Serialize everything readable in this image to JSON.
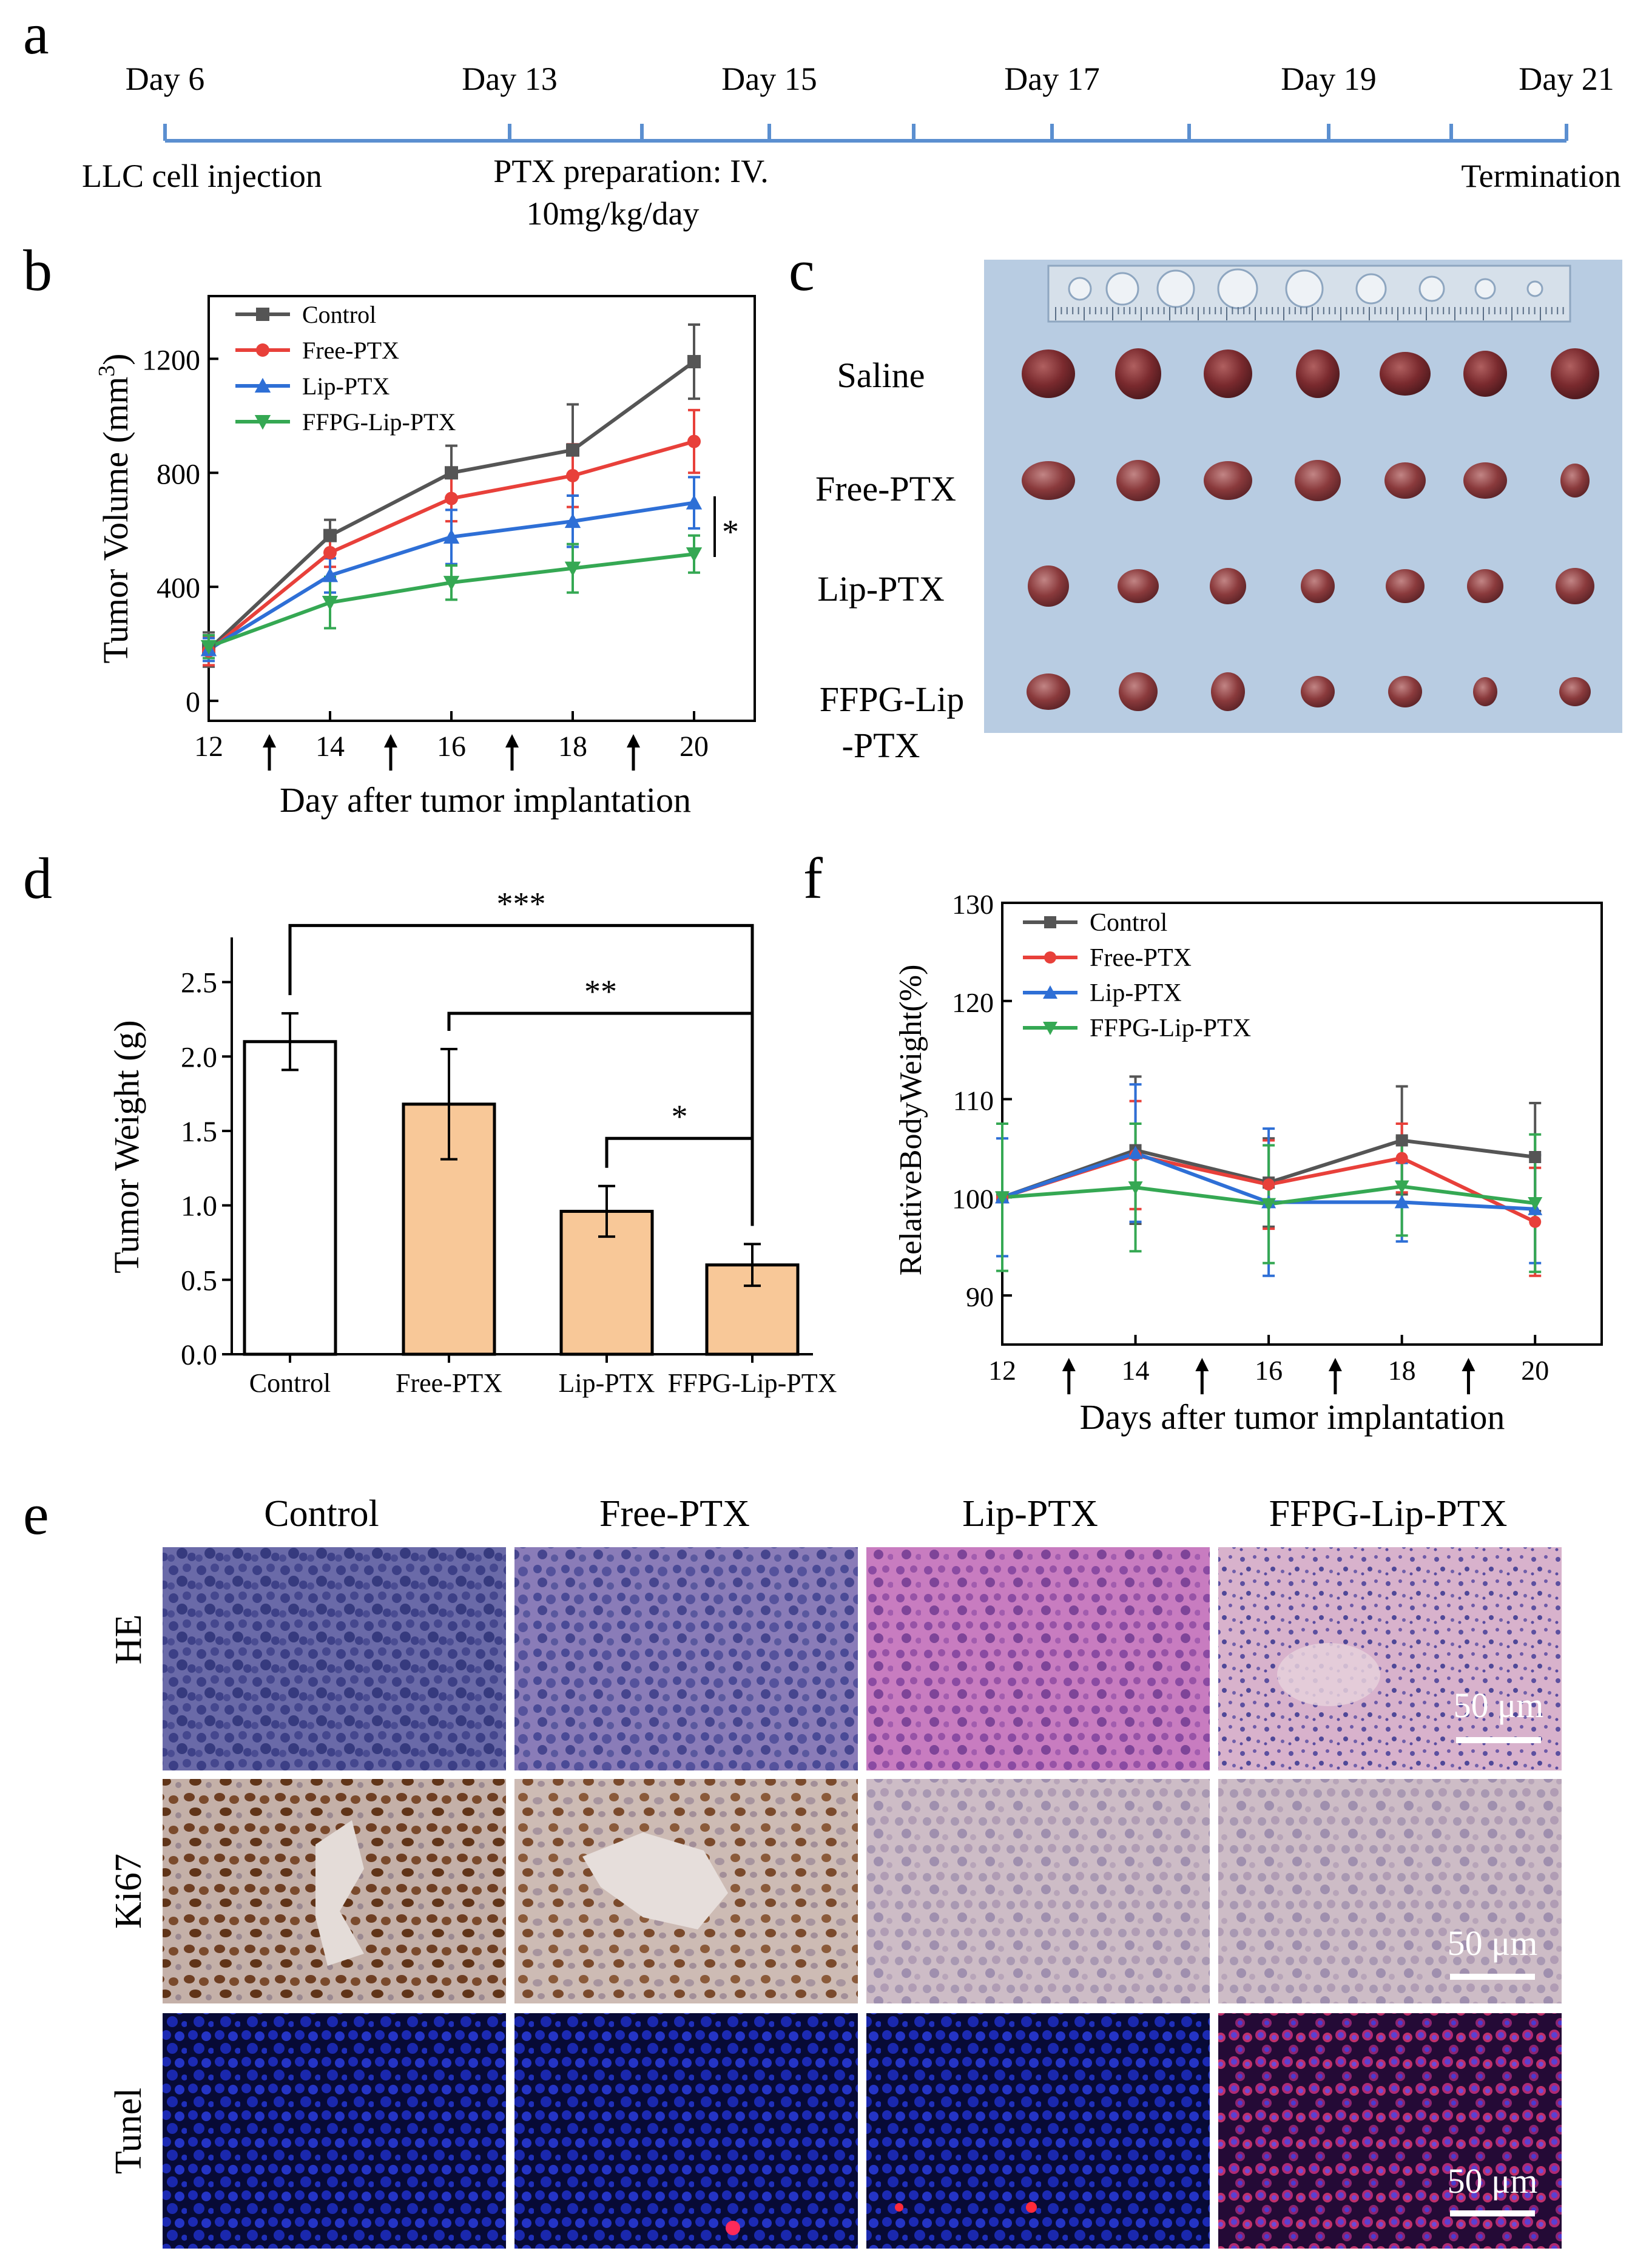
{
  "panel_labels": {
    "a": "a",
    "b": "b",
    "c": "c",
    "d": "d",
    "e": "e",
    "f": "f"
  },
  "timeline": {
    "days": [
      "Day 6",
      "Day 13",
      "Day 15",
      "Day 17",
      "Day 19",
      "Day 21"
    ],
    "below_labels": {
      "injection": "LLC  cell injection",
      "prep_line1": "PTX preparation:  IV.",
      "prep_line2": "10mg/kg/day",
      "termination": "Termination"
    },
    "line_color": "#5b8fd0"
  },
  "photo_c": {
    "row_labels": [
      "Saline",
      "Free-PTX",
      "Lip-PTX",
      "FFPG-Lip",
      "-PTX"
    ]
  },
  "histology": {
    "columns": [
      "Control",
      "Free-PTX",
      "Lip-PTX",
      "FFPG-Lip-PTX"
    ],
    "rows": [
      "HE",
      "Ki67",
      "Tunel"
    ],
    "scale_bar": "50 μm"
  },
  "chart_data": [
    {
      "id": "b",
      "type": "line",
      "title": "",
      "xlabel": "Day after tumor implantation",
      "ylabel_main": "Tumor Volume (mm",
      "ylabel_sup": "3",
      "ylabel_close": ")",
      "x": [
        12,
        14,
        16,
        18,
        20
      ],
      "xticks": [
        "12",
        "14",
        "16",
        "18",
        "20"
      ],
      "xlim": [
        12,
        21
      ],
      "ylim": [
        -70,
        1420
      ],
      "yticks": [
        0,
        400,
        800,
        1200
      ],
      "ytick_labels": [
        "0",
        "400",
        "800",
        "1200"
      ],
      "dose_days": [
        13,
        15,
        17,
        19
      ],
      "legend_position": "top-left",
      "significance": "*",
      "series": [
        {
          "name": "Control",
          "color": "#555555",
          "marker": "square",
          "values": [
            180,
            580,
            800,
            880,
            1190
          ],
          "errors": [
            60,
            55,
            95,
            160,
            130
          ]
        },
        {
          "name": "Free-PTX",
          "color": "#e8403a",
          "marker": "circle",
          "values": [
            175,
            520,
            710,
            790,
            910
          ],
          "errors": [
            50,
            50,
            80,
            110,
            110
          ]
        },
        {
          "name": "Lip-PTX",
          "color": "#2e6fd6",
          "marker": "triangle-up",
          "values": [
            180,
            440,
            575,
            630,
            695
          ],
          "errors": [
            40,
            60,
            95,
            90,
            90
          ]
        },
        {
          "name": "FFPG-Lip-PTX",
          "color": "#35a853",
          "marker": "triangle-down",
          "values": [
            190,
            345,
            415,
            465,
            515
          ],
          "errors": [
            40,
            90,
            60,
            85,
            65
          ]
        }
      ]
    },
    {
      "id": "d",
      "type": "bar",
      "title": "",
      "xlabel": "",
      "ylabel": "Tumor Weight (g)",
      "categories": [
        "Control",
        "Free-PTX",
        "Lip-PTX",
        "FFPG-Lip-PTX"
      ],
      "values": [
        2.1,
        1.68,
        0.96,
        0.6
      ],
      "errors": [
        0.19,
        0.37,
        0.17,
        0.14
      ],
      "colors": [
        "#ffffff",
        "#f8c898",
        "#f8c898",
        "#f8c898"
      ],
      "ylim": [
        0,
        2.8
      ],
      "yticks": [
        0,
        0.5,
        1.0,
        1.5,
        2.0,
        2.5
      ],
      "ytick_labels": [
        "0.0",
        "0.5",
        "1.0",
        "1.5",
        "2.0",
        "2.5"
      ],
      "significance": [
        {
          "from": 0,
          "to": 3,
          "label": "***",
          "level": 2.88
        },
        {
          "from": 1,
          "to": 3,
          "label": "**",
          "level": 2.29
        },
        {
          "from": 2,
          "to": 3,
          "label": "*",
          "level": 1.45
        }
      ]
    },
    {
      "id": "f",
      "type": "line",
      "title": "",
      "xlabel": "Days after tumor implantation",
      "ylabel": "RelativeBodyWeight(%)",
      "x": [
        12,
        14,
        16,
        18,
        20
      ],
      "xticks": [
        "12",
        "14",
        "16",
        "18",
        "20"
      ],
      "xlim": [
        12,
        21
      ],
      "ylim": [
        85,
        130
      ],
      "yticks": [
        90,
        100,
        110,
        120,
        130
      ],
      "ytick_labels": [
        "90",
        "100",
        "110",
        "120",
        "130"
      ],
      "dose_days": [
        13,
        15,
        17,
        19
      ],
      "legend_position": "top-left",
      "series": [
        {
          "name": "Control",
          "color": "#555555",
          "marker": "square",
          "values": [
            100,
            104.8,
            101.5,
            105.8,
            104.1
          ],
          "errors": [
            0,
            7.5,
            4.5,
            5.5,
            5.5
          ]
        },
        {
          "name": "Free-PTX",
          "color": "#e8403a",
          "marker": "circle",
          "values": [
            100,
            104.3,
            101.3,
            104,
            97.5
          ],
          "errors": [
            0,
            5.5,
            4.5,
            3.5,
            5.5
          ]
        },
        {
          "name": "Lip-PTX",
          "color": "#2e6fd6",
          "marker": "triangle-up",
          "values": [
            100,
            104.5,
            99.5,
            99.5,
            98.8
          ],
          "errors": [
            6,
            7,
            7.5,
            4,
            5.5
          ]
        },
        {
          "name": "FFPG-Lip-PTX",
          "color": "#35a853",
          "marker": "triangle-down",
          "values": [
            100,
            101,
            99.3,
            101.1,
            99.4
          ],
          "errors": [
            7.5,
            6.5,
            6,
            5,
            7
          ]
        }
      ]
    }
  ]
}
